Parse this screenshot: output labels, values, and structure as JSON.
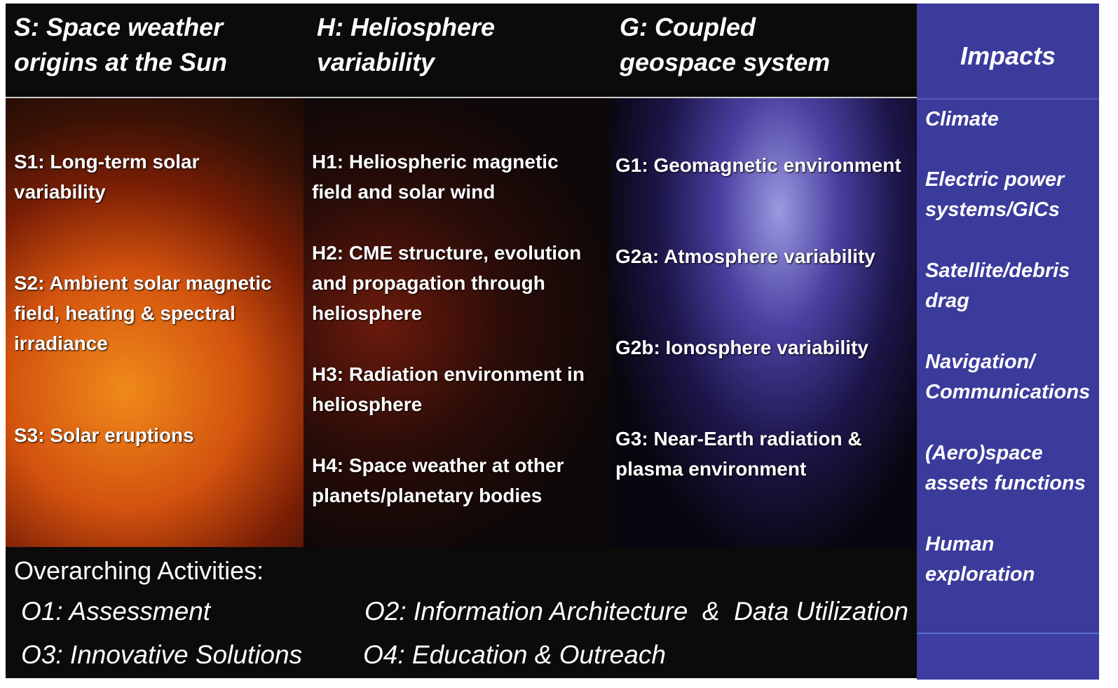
{
  "header": {
    "columns": [
      "S: Space weather origins at the Sun",
      "H: Heliosphere variability",
      "G: Coupled geospace system"
    ],
    "impacts_title": "Impacts"
  },
  "columns": [
    {
      "items": [
        "S1: Long-term solar variability",
        "S2: Ambient  solar magnetic field, heating & spectral irradiance",
        "S3: Solar eruptions"
      ]
    },
    {
      "items": [
        "H1: Heliospheric magnetic field and solar wind",
        "H2: CME structure, evolution and propagation through heliosphere",
        "H3: Radiation environment in heliosphere",
        "H4: Space weather at other planets/planetary bodies"
      ]
    },
    {
      "items": [
        "G1: Geomagnetic environment",
        "G2a: Atmosphere variability",
        "G2b: Ionosphere variability",
        "G3: Near-Earth radiation & plasma environment"
      ]
    }
  ],
  "overarching": {
    "title": "Overarching Activities:",
    "items": [
      "O1: Assessment",
      "O2: Information Architecture  &  Data Utilization",
      "O3: Innovative Solutions",
      "O4: Education & Outreach"
    ]
  },
  "impacts": [
    "Climate",
    "Electric power systems/GICs",
    "Satellite/debris drag",
    "Navigation/ Communications",
    "(Aero)space assets functions",
    "Human exploration"
  ]
}
